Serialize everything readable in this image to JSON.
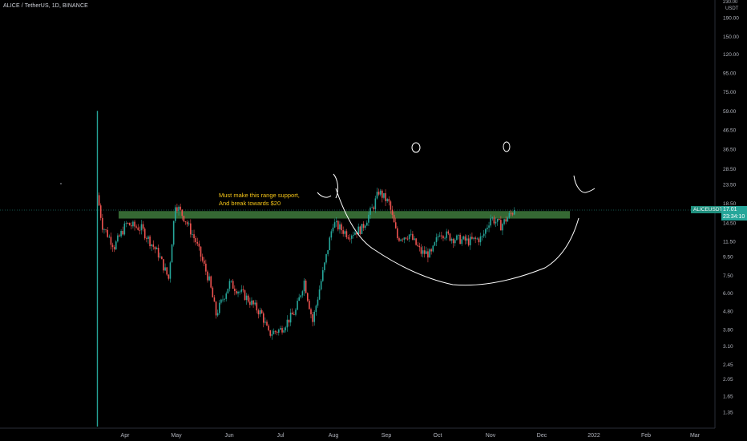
{
  "header": {
    "symbol_line": "ALICE / TetherUS, 1D, BINANCE"
  },
  "price_axis": {
    "currency": "USDT",
    "top_partial": "230.00"
  },
  "last_price": {
    "ticker": "ALICEUSDT",
    "price": "17.01",
    "countdown": "23:34:10"
  },
  "annotations": {
    "note_line1": "Must make this range support,",
    "note_line2": "And break towards $20"
  },
  "colors": {
    "background": "#000000",
    "up": "#26a69a",
    "down": "#ef5350",
    "zone": "#3e7a3c",
    "text": "#b2b5be",
    "note": "#f5c518",
    "drawing": "#ffffff"
  },
  "chart_data": {
    "type": "candlestick",
    "scale": "log",
    "y_ticks": [
      "190.00",
      "150.00",
      "120.00",
      "95.00",
      "75.00",
      "59.00",
      "46.50",
      "36.50",
      "28.50",
      "23.50",
      "18.50",
      "14.50",
      "11.50",
      "9.50",
      "7.50",
      "6.00",
      "4.80",
      "3.80",
      "3.10",
      "2.45",
      "2.05",
      "1.65",
      "1.35"
    ],
    "x_ticks": [
      "Apr",
      "May",
      "Jun",
      "Jul",
      "Aug",
      "Sep",
      "Oct",
      "Nov",
      "Dec",
      "2022",
      "Feb",
      "Mar"
    ],
    "support_zone": [
      15.3,
      16.8
    ],
    "ohlc_keypoints": [
      {
        "date": "2021-03-15",
        "close": 20.5
      },
      {
        "date": "2021-03-18",
        "close": 14.0
      },
      {
        "date": "2021-03-25",
        "close": 10.8
      },
      {
        "date": "2021-04-01",
        "close": 14.3
      },
      {
        "date": "2021-04-10",
        "close": 13.5
      },
      {
        "date": "2021-04-20",
        "close": 9.8
      },
      {
        "date": "2021-04-26",
        "close": 7.2
      },
      {
        "date": "2021-04-30",
        "close": 18.5
      },
      {
        "date": "2021-05-06",
        "close": 15.0
      },
      {
        "date": "2021-05-12",
        "close": 11.5
      },
      {
        "date": "2021-05-20",
        "close": 7.0
      },
      {
        "date": "2021-05-24",
        "close": 4.6
      },
      {
        "date": "2021-06-01",
        "close": 6.8
      },
      {
        "date": "2021-06-10",
        "close": 5.8
      },
      {
        "date": "2021-06-20",
        "close": 4.6
      },
      {
        "date": "2021-06-24",
        "close": 3.6
      },
      {
        "date": "2021-07-01",
        "close": 3.8
      },
      {
        "date": "2021-07-10",
        "close": 4.8
      },
      {
        "date": "2021-07-15",
        "close": 7.0
      },
      {
        "date": "2021-07-20",
        "close": 4.2
      },
      {
        "date": "2021-07-28",
        "close": 9.5
      },
      {
        "date": "2021-08-01",
        "close": 14.5
      },
      {
        "date": "2021-08-10",
        "close": 12.5
      },
      {
        "date": "2021-08-18",
        "close": 13.5
      },
      {
        "date": "2021-08-25",
        "close": 18.0
      },
      {
        "date": "2021-08-28",
        "close": 21.5
      },
      {
        "date": "2021-09-03",
        "close": 18.5
      },
      {
        "date": "2021-09-08",
        "close": 12.0
      },
      {
        "date": "2021-09-15",
        "close": 12.5
      },
      {
        "date": "2021-09-22",
        "close": 10.0
      },
      {
        "date": "2021-09-28",
        "close": 9.8
      },
      {
        "date": "2021-10-03",
        "close": 13.0
      },
      {
        "date": "2021-10-10",
        "close": 12.0
      },
      {
        "date": "2021-10-20",
        "close": 11.5
      },
      {
        "date": "2021-10-28",
        "close": 12.0
      },
      {
        "date": "2021-11-02",
        "close": 15.5
      },
      {
        "date": "2021-11-08",
        "close": 14.0
      },
      {
        "date": "2021-11-12",
        "close": 15.5
      },
      {
        "date": "2021-11-16",
        "close": 17.01
      }
    ]
  }
}
